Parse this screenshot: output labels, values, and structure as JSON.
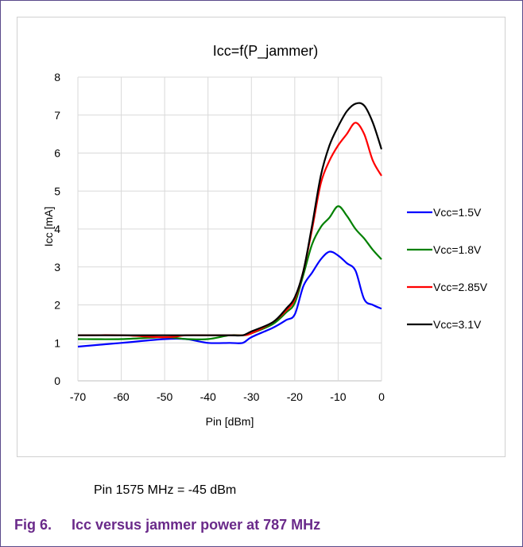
{
  "chart_data": {
    "type": "line",
    "title": "Icc=f(P_jammer)",
    "xlabel": "Pin [dBm]",
    "ylabel": "Icc [mA]",
    "xlim": [
      -70,
      0
    ],
    "ylim": [
      0,
      8
    ],
    "x_ticks": [
      -70,
      -60,
      -50,
      -40,
      -30,
      -20,
      -10,
      0
    ],
    "y_ticks": [
      0,
      1,
      2,
      3,
      4,
      5,
      6,
      7,
      8
    ],
    "grid": true,
    "legend_position": "right",
    "series": [
      {
        "name": "Vcc=1.5V",
        "color": "#0000ff",
        "x": [
          -70,
          -60,
          -50,
          -45,
          -40,
          -35,
          -32,
          -30,
          -25,
          -22,
          -20,
          -18,
          -16,
          -14,
          -12,
          -10,
          -8,
          -6,
          -4,
          -2,
          0
        ],
        "y": [
          0.9,
          1.0,
          1.1,
          1.1,
          1.0,
          1.0,
          1.0,
          1.15,
          1.4,
          1.6,
          1.75,
          2.5,
          2.85,
          3.2,
          3.4,
          3.3,
          3.1,
          2.9,
          2.15,
          2.0,
          1.9
        ]
      },
      {
        "name": "Vcc=1.8V",
        "color": "#008000",
        "x": [
          -70,
          -60,
          -50,
          -45,
          -40,
          -35,
          -32,
          -30,
          -25,
          -22,
          -20,
          -18,
          -16,
          -14,
          -12,
          -10,
          -8,
          -6,
          -4,
          -2,
          0
        ],
        "y": [
          1.1,
          1.1,
          1.15,
          1.1,
          1.1,
          1.2,
          1.2,
          1.25,
          1.5,
          1.8,
          2.05,
          2.8,
          3.6,
          4.05,
          4.3,
          4.6,
          4.35,
          4.0,
          3.75,
          3.45,
          3.2
        ]
      },
      {
        "name": "Vcc=2.85V",
        "color": "#ff0000",
        "x": [
          -70,
          -60,
          -50,
          -45,
          -40,
          -35,
          -32,
          -30,
          -25,
          -22,
          -20,
          -18,
          -16,
          -14,
          -12,
          -10,
          -8,
          -6,
          -4,
          -2,
          0
        ],
        "y": [
          1.2,
          1.2,
          1.15,
          1.2,
          1.2,
          1.2,
          1.2,
          1.25,
          1.55,
          1.85,
          2.15,
          2.9,
          4.0,
          5.2,
          5.8,
          6.2,
          6.5,
          6.8,
          6.5,
          5.8,
          5.4
        ]
      },
      {
        "name": "Vcc=3.1V",
        "color": "#000000",
        "x": [
          -70,
          -60,
          -50,
          -45,
          -40,
          -35,
          -32,
          -30,
          -25,
          -22,
          -20,
          -18,
          -16,
          -14,
          -12,
          -10,
          -8,
          -6,
          -4,
          -2,
          0
        ],
        "y": [
          1.2,
          1.2,
          1.2,
          1.2,
          1.2,
          1.2,
          1.2,
          1.3,
          1.55,
          1.9,
          2.2,
          2.9,
          4.1,
          5.4,
          6.2,
          6.7,
          7.1,
          7.3,
          7.25,
          6.8,
          6.1
        ]
      }
    ]
  },
  "note": "Pin 1575 MHz = -45 dBm",
  "caption": {
    "number": "Fig 6.",
    "text": "Icc versus jammer power at 787 MHz"
  }
}
